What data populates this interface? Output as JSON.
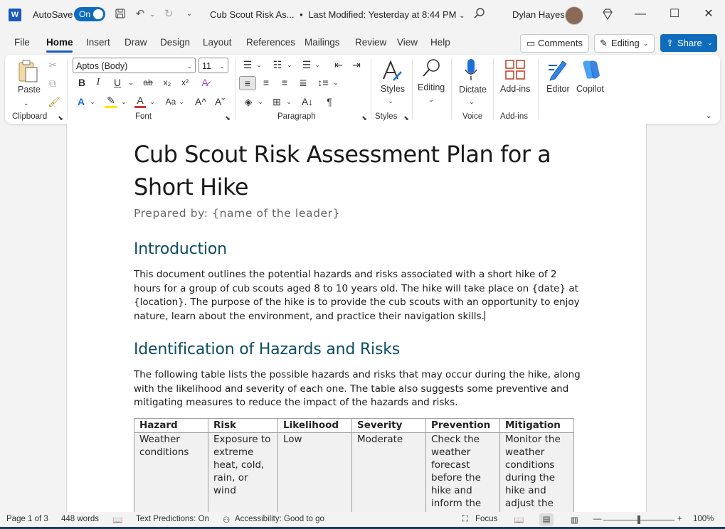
{
  "titlebar": {
    "autosave_label": "AutoSave",
    "autosave_state": "On",
    "doc_title": "Cub Scout Risk As...",
    "separator": "•",
    "last_modified": "Last Modified: Yesterday at 8:44 PM",
    "user_name": "Dylan Hayes"
  },
  "menu": {
    "items": [
      "File",
      "Home",
      "Insert",
      "Draw",
      "Design",
      "Layout",
      "References",
      "Mailings",
      "Review",
      "View",
      "Help"
    ],
    "active": "Home",
    "comments_label": "Comments",
    "editing_label": "Editing",
    "share_label": "Share"
  },
  "ribbon": {
    "paste_label": "Paste",
    "font_name": "Aptos (Body)",
    "font_size": "11",
    "groups": {
      "clipboard": "Clipboard",
      "font": "Font",
      "paragraph": "Paragraph",
      "styles": "Styles",
      "voice": "Voice",
      "addins": "Add-ins"
    },
    "styles_label": "Styles",
    "editing_label": "Editing",
    "dictate_label": "Dictate",
    "addins_label": "Add-ins",
    "editor_label": "Editor",
    "copilot_label": "Copilot"
  },
  "document": {
    "title_line1": "Cub Scout Risk Assessment Plan for a",
    "title_line2": "Short Hike",
    "subtitle": "Prepared by: {name of the leader}",
    "intro_heading": "Introduction",
    "intro_text": "This document outlines the potential hazards and risks associated with a short hike of 2 hours for a group of cub scouts aged 8 to 10 years old. The hike will take place on {date} at {location}. The purpose of the hike is to provide the cub scouts with an opportunity to enjoy nature, learn about the environment, and practice their navigation skills.",
    "hazards_heading": "Identification of Hazards and Risks",
    "hazards_text": "The following table lists the possible hazards and risks that may occur during the hike, along with the likelihood and severity of each one. The table also suggests some preventive and mitigating measures to reduce the impact of the hazards and risks.",
    "table": {
      "headers": [
        "Hazard",
        "Risk",
        "Likelihood",
        "Severity",
        "Prevention",
        "Mitigation"
      ],
      "rows": [
        [
          "Weather conditions",
          "Exposure to extreme heat, cold, rain, or wind",
          "Low",
          "Moderate",
          "Check the weather forecast before the hike and inform the",
          "Monitor the weather conditions during the hike and adjust the"
        ]
      ]
    }
  },
  "statusbar": {
    "page": "Page 1 of 3",
    "words": "448 words",
    "text_predictions": "Text Predictions: On",
    "accessibility": "Accessibility: Good to go",
    "focus": "Focus",
    "zoom": "100%",
    "zoom_level": 1.0
  }
}
